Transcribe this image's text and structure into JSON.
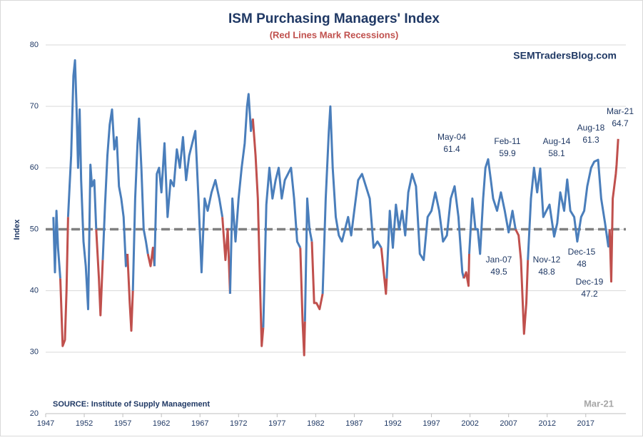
{
  "chart_data": {
    "type": "line",
    "title": "ISM Purchasing  Managers'  Index",
    "subtitle": "(Red Lines Mark Recessions)",
    "watermark": "SEMTradersBlog.com",
    "source": "SOURCE:  Institute of Supply Management",
    "date_stamp": "Mar-21",
    "y_label": "Index",
    "xlim": [
      1947,
      2022.2
    ],
    "xticks": [
      1947,
      1952,
      1957,
      1962,
      1967,
      1972,
      1977,
      1982,
      1987,
      1992,
      1997,
      2002,
      2007,
      2012,
      2017
    ],
    "ylim": [
      20,
      80
    ],
    "yticks": [
      20,
      30,
      40,
      50,
      60,
      70,
      80
    ],
    "grid": true,
    "reference_line": 50,
    "color": "#4a7ebb",
    "recession_color": "#c0504d",
    "recessions": [
      [
        1948.9,
        1949.9
      ],
      [
        1953.55,
        1954.4
      ],
      [
        1957.6,
        1958.3
      ],
      [
        1960.25,
        1961.1
      ],
      [
        1969.9,
        1970.9
      ],
      [
        1973.85,
        1975.2
      ],
      [
        1980.0,
        1980.6
      ],
      [
        1981.5,
        1982.9
      ],
      [
        1990.5,
        1991.2
      ],
      [
        2001.2,
        2001.9
      ],
      [
        2007.9,
        2009.5
      ],
      [
        2020.1,
        2021.2
      ]
    ],
    "x": [
      1948.0,
      1948.2,
      1948.4,
      1948.6,
      1948.9,
      1949.2,
      1949.5,
      1949.7,
      1949.9,
      1950.1,
      1950.3,
      1950.6,
      1950.8,
      1951.0,
      1951.2,
      1951.4,
      1951.6,
      1951.9,
      1952.2,
      1952.5,
      1952.8,
      1953.0,
      1953.3,
      1953.55,
      1953.9,
      1954.1,
      1954.4,
      1954.7,
      1955.0,
      1955.3,
      1955.6,
      1955.9,
      1956.2,
      1956.5,
      1956.8,
      1957.1,
      1957.4,
      1957.6,
      1957.9,
      1958.1,
      1958.3,
      1958.6,
      1958.9,
      1959.1,
      1959.4,
      1959.7,
      1960.0,
      1960.25,
      1960.6,
      1960.9,
      1961.1,
      1961.4,
      1961.7,
      1962.0,
      1962.4,
      1962.8,
      1963.2,
      1963.6,
      1964.0,
      1964.4,
      1964.8,
      1965.2,
      1965.6,
      1966.0,
      1966.4,
      1966.8,
      1967.2,
      1967.6,
      1968.0,
      1968.5,
      1969.0,
      1969.5,
      1969.9,
      1970.3,
      1970.6,
      1970.9,
      1971.2,
      1971.6,
      1972.0,
      1972.4,
      1972.8,
      1973.1,
      1973.3,
      1973.6,
      1973.85,
      1974.2,
      1974.5,
      1974.8,
      1975.0,
      1975.2,
      1975.6,
      1976.0,
      1976.4,
      1976.8,
      1977.2,
      1977.6,
      1978.0,
      1978.4,
      1978.8,
      1979.2,
      1979.6,
      1980.0,
      1980.3,
      1980.5,
      1980.6,
      1980.9,
      1981.2,
      1981.5,
      1981.8,
      1982.1,
      1982.5,
      1982.9,
      1983.3,
      1983.7,
      1983.9,
      1984.2,
      1984.6,
      1985.0,
      1985.4,
      1985.8,
      1986.2,
      1986.6,
      1987.0,
      1987.5,
      1988.0,
      1988.5,
      1989.0,
      1989.5,
      1990.0,
      1990.5,
      1990.9,
      1991.1,
      1991.2,
      1991.6,
      1992.0,
      1992.4,
      1992.8,
      1993.2,
      1993.6,
      1994.0,
      1994.5,
      1995.0,
      1995.5,
      1996.0,
      1996.5,
      1997.0,
      1997.5,
      1998.0,
      1998.5,
      1999.0,
      1999.5,
      2000.0,
      2000.5,
      2001.0,
      2001.2,
      2001.5,
      2001.8,
      2001.9,
      2002.3,
      2002.7,
      2003.0,
      2003.3,
      2003.7,
      2004.0,
      2004.35,
      2004.7,
      2005.0,
      2005.5,
      2006.0,
      2006.5,
      2007.0,
      2007.5,
      2007.9,
      2008.3,
      2008.6,
      2008.9,
      2009.0,
      2009.3,
      2009.5,
      2009.9,
      2010.3,
      2010.7,
      2011.1,
      2011.5,
      2011.9,
      2012.3,
      2012.9,
      2013.3,
      2013.7,
      2014.2,
      2014.6,
      2015.0,
      2015.5,
      2015.9,
      2016.4,
      2016.8,
      2017.2,
      2017.7,
      2018.1,
      2018.6,
      2019.0,
      2019.5,
      2019.92,
      2020.1,
      2020.3,
      2020.5,
      2020.6,
      2020.9,
      2021.0,
      2021.2
    ],
    "values": [
      52,
      43,
      53,
      47,
      42,
      31,
      32,
      40,
      52,
      57,
      62,
      75,
      77.5,
      70,
      60,
      69.5,
      58,
      48,
      44,
      37,
      60.5,
      57,
      58,
      50,
      42,
      36,
      45,
      54,
      62,
      67,
      69.5,
      63,
      65,
      57,
      55,
      52,
      44,
      46,
      38,
      33.5,
      40,
      55,
      64,
      68,
      60,
      50,
      48,
      46,
      44,
      47,
      44,
      59,
      60,
      56,
      64,
      52,
      58,
      57,
      63,
      60,
      65,
      58,
      62,
      64,
      66,
      55,
      43,
      55,
      53,
      56,
      58,
      55,
      52,
      45,
      50,
      39.5,
      55,
      48,
      55,
      60,
      64,
      70,
      72,
      66,
      68,
      62,
      55,
      40,
      31,
      34,
      54,
      60,
      55,
      58,
      60,
      55,
      58,
      59,
      60,
      55,
      48,
      47,
      35,
      29.5,
      35,
      55,
      50,
      48,
      38,
      38,
      37,
      39.5,
      55,
      66,
      70,
      60,
      52,
      49,
      48,
      50,
      52,
      49,
      53,
      58,
      59,
      57,
      55,
      47,
      48,
      47,
      42,
      39.5,
      42,
      53,
      47,
      54,
      50,
      53,
      49,
      56,
      59,
      57,
      46,
      45,
      52,
      53,
      56,
      53,
      48,
      49,
      55,
      57,
      52,
      43,
      42,
      43,
      40.8,
      46,
      55,
      50,
      50,
      46,
      55,
      60,
      61.4,
      58,
      55,
      53,
      56,
      53,
      49.5,
      53,
      50,
      49,
      45,
      36,
      33,
      38,
      45,
      55,
      60,
      56,
      59.9,
      52,
      53,
      54,
      48.8,
      51,
      56,
      53,
      58.1,
      53,
      52,
      48,
      52,
      53,
      57,
      60,
      61,
      61.3,
      55,
      51,
      47.2,
      50,
      41.5,
      55,
      56,
      59,
      60.5,
      64.7
    ],
    "annotations": [
      {
        "date": "May-04",
        "value": 61.4
      },
      {
        "date": "Feb-11",
        "value": 59.9
      },
      {
        "date": "Aug-14",
        "value": 58.1
      },
      {
        "date": "Aug-18",
        "value": 61.3
      },
      {
        "date": "Mar-21",
        "value": 64.7
      },
      {
        "date": "Jan-07",
        "value": 49.5
      },
      {
        "date": "Nov-12",
        "value": 48.8
      },
      {
        "date": "Dec-15",
        "value": 48
      },
      {
        "date": "Dec-19",
        "value": 47.2
      }
    ]
  }
}
